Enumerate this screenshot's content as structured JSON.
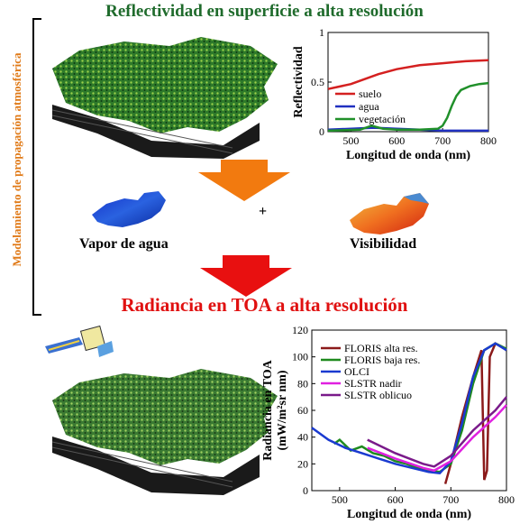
{
  "colors": {
    "title_green": "#1f6b2c",
    "title_red": "#e01010",
    "side_orange": "#e07a18",
    "arrow_orange": "#f27a0f",
    "arrow_red": "#e81010"
  },
  "top_title": "Reflectividad en superficie a alta resolución",
  "side_label": "Modelamiento de propagación atmosférica",
  "plus": "+",
  "water_vapor_label": "Vapor de agua",
  "visibility_label": "Visibilidad",
  "mid_title": "Radiancia en TOA a alta resolución",
  "chart_data": [
    {
      "type": "line",
      "xlabel": "Longitud de onda (nm)",
      "ylabel": "Reflectividad",
      "xlim": [
        450,
        800
      ],
      "ylim": [
        0,
        1
      ],
      "xticks": [
        500,
        600,
        700,
        800
      ],
      "yticks": [
        0,
        0.5,
        1
      ],
      "legend_position": "left",
      "series": [
        {
          "name": "suelo",
          "color": "#d42020",
          "x": [
            450,
            470,
            500,
            530,
            560,
            600,
            650,
            700,
            750,
            800
          ],
          "y": [
            0.43,
            0.45,
            0.48,
            0.53,
            0.58,
            0.63,
            0.67,
            0.69,
            0.71,
            0.72
          ]
        },
        {
          "name": "agua",
          "color": "#2030c0",
          "x": [
            450,
            500,
            550,
            600,
            650,
            700,
            750,
            800
          ],
          "y": [
            0.02,
            0.03,
            0.04,
            0.03,
            0.02,
            0.01,
            0.01,
            0.01
          ]
        },
        {
          "name": "vegetación",
          "color": "#20902a",
          "x": [
            450,
            520,
            545,
            570,
            600,
            650,
            690,
            700,
            710,
            720,
            730,
            740,
            760,
            780,
            800
          ],
          "y": [
            0.01,
            0.02,
            0.06,
            0.03,
            0.02,
            0.02,
            0.03,
            0.06,
            0.14,
            0.26,
            0.36,
            0.42,
            0.46,
            0.48,
            0.49
          ]
        }
      ]
    },
    {
      "type": "line",
      "xlabel": "Longitud de onda (nm)",
      "ylabel": "Radiancia en TOA\n(mW/m²sr nm)",
      "xlim": [
        450,
        800
      ],
      "ylim": [
        0,
        120
      ],
      "xticks": [
        500,
        600,
        700,
        800
      ],
      "yticks": [
        0,
        20,
        40,
        60,
        80,
        100,
        120
      ],
      "legend_position": "top-left",
      "series": [
        {
          "name": "FLORIS alta res.",
          "color": "#8b1a1a",
          "x": [
            690,
            700,
            720,
            740,
            755,
            760,
            765,
            770,
            780,
            790,
            800
          ],
          "y": [
            5,
            20,
            55,
            85,
            105,
            8,
            15,
            100,
            110,
            108,
            105
          ]
        },
        {
          "name": "FLORIS baja res.",
          "color": "#1e8a1e",
          "x": [
            490,
            500,
            520,
            540,
            560,
            580,
            600,
            620,
            640,
            660,
            680,
            700,
            720,
            740,
            760,
            780,
            800
          ],
          "y": [
            35,
            38,
            30,
            33,
            28,
            26,
            22,
            20,
            17,
            15,
            14,
            20,
            45,
            80,
            105,
            110,
            106
          ]
        },
        {
          "name": "OLCI",
          "color": "#1a3ad0",
          "x": [
            450,
            480,
            510,
            540,
            570,
            600,
            630,
            660,
            680,
            700,
            720,
            740,
            760,
            780,
            800
          ],
          "y": [
            47,
            38,
            32,
            28,
            24,
            20,
            17,
            14,
            13,
            22,
            50,
            85,
            105,
            110,
            105
          ]
        },
        {
          "name": "SLSTR nadir",
          "color": "#e020e0",
          "x": [
            550,
            600,
            650,
            670,
            700,
            740,
            780,
            800
          ],
          "y": [
            32,
            24,
            17,
            15,
            22,
            40,
            55,
            64
          ]
        },
        {
          "name": "SLSTR oblicuo",
          "color": "#7a1a8a",
          "x": [
            550,
            600,
            650,
            670,
            700,
            740,
            780,
            800
          ],
          "y": [
            38,
            28,
            20,
            18,
            26,
            45,
            60,
            70
          ]
        }
      ]
    }
  ]
}
